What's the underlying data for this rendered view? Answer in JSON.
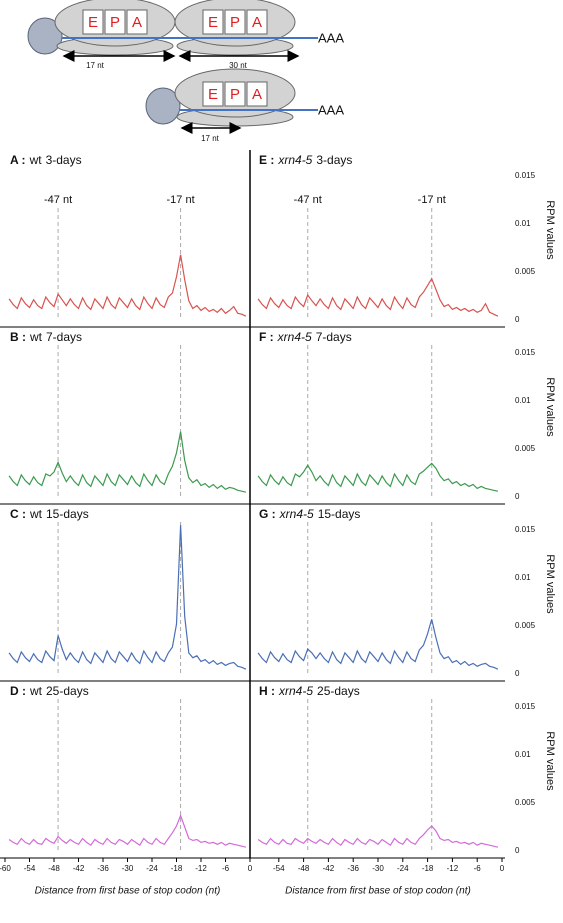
{
  "diagram": {
    "top": {
      "ribosome_1": [
        "E",
        "P",
        "A"
      ],
      "ribosome_2": [
        "E",
        "P",
        "A"
      ],
      "tail": "AAA",
      "spans": [
        "17 nt",
        "30 nt"
      ]
    },
    "bottom": {
      "ribosome": [
        "E",
        "P",
        "A"
      ],
      "tail": "AAA",
      "span": "17 nt"
    }
  },
  "chart_data": [
    {
      "type": "line",
      "panel": "A :",
      "genotype": "wt",
      "stage": "3-days",
      "color": "#d9534f",
      "xlim": [
        -60,
        0
      ],
      "ylim": [
        0,
        0.017
      ],
      "vlines": [
        -47,
        -17
      ],
      "annotations": [
        {
          "text": "-47 nt",
          "x": -47
        },
        {
          "text": "-17 nt",
          "x": -17
        }
      ],
      "x": [
        -59,
        -58,
        -57,
        -56,
        -55,
        -54,
        -53,
        -52,
        -51,
        -50,
        -49,
        -48,
        -47,
        -46,
        -45,
        -44,
        -43,
        -42,
        -41,
        -40,
        -39,
        -38,
        -37,
        -36,
        -35,
        -34,
        -33,
        -32,
        -31,
        -30,
        -29,
        -28,
        -27,
        -26,
        -25,
        -24,
        -23,
        -22,
        -21,
        -20,
        -19,
        -18,
        -17,
        -16,
        -15,
        -14,
        -13,
        -12,
        -11,
        -10,
        -9,
        -8,
        -7,
        -6,
        -5,
        -4,
        -3,
        -2,
        -1
      ],
      "values": [
        0.0022,
        0.0016,
        0.0012,
        0.0023,
        0.0017,
        0.0013,
        0.0021,
        0.0015,
        0.0012,
        0.0024,
        0.0018,
        0.0014,
        0.0027,
        0.0021,
        0.0015,
        0.0022,
        0.0016,
        0.0012,
        0.0023,
        0.0015,
        0.0011,
        0.0022,
        0.0017,
        0.0012,
        0.0024,
        0.0016,
        0.0012,
        0.0023,
        0.0018,
        0.0013,
        0.0022,
        0.0015,
        0.0011,
        0.0024,
        0.0017,
        0.0012,
        0.0023,
        0.0016,
        0.0013,
        0.0024,
        0.0028,
        0.0045,
        0.0068,
        0.0042,
        0.002,
        0.0012,
        0.0015,
        0.001,
        0.0013,
        0.0009,
        0.0011,
        0.0008,
        0.0012,
        0.0007,
        0.001,
        0.0014,
        0.0007,
        0.0006,
        0.0004
      ]
    },
    {
      "type": "line",
      "panel": "B :",
      "genotype": "wt",
      "stage": "7-days",
      "color": "#3c9a50",
      "xlim": [
        -60,
        0
      ],
      "ylim": [
        0,
        0.017
      ],
      "vlines": [
        -47,
        -17
      ],
      "x": [
        -59,
        -58,
        -57,
        -56,
        -55,
        -54,
        -53,
        -52,
        -51,
        -50,
        -49,
        -48,
        -47,
        -46,
        -45,
        -44,
        -43,
        -42,
        -41,
        -40,
        -39,
        -38,
        -37,
        -36,
        -35,
        -34,
        -33,
        -32,
        -31,
        -30,
        -29,
        -28,
        -27,
        -26,
        -25,
        -24,
        -23,
        -22,
        -21,
        -20,
        -19,
        -18,
        -17,
        -16,
        -15,
        -14,
        -13,
        -12,
        -11,
        -10,
        -9,
        -8,
        -7,
        -6,
        -5,
        -4,
        -3,
        -2,
        -1
      ],
      "values": [
        0.0022,
        0.0016,
        0.0012,
        0.0023,
        0.0017,
        0.0013,
        0.0021,
        0.0015,
        0.0012,
        0.0024,
        0.0022,
        0.0026,
        0.0036,
        0.0025,
        0.0016,
        0.0022,
        0.0016,
        0.0012,
        0.0023,
        0.0015,
        0.0011,
        0.0022,
        0.0017,
        0.0012,
        0.0024,
        0.0016,
        0.0012,
        0.0023,
        0.0018,
        0.0013,
        0.0022,
        0.0015,
        0.0011,
        0.0024,
        0.0017,
        0.0012,
        0.0023,
        0.0016,
        0.0013,
        0.0024,
        0.0032,
        0.0046,
        0.0068,
        0.0038,
        0.002,
        0.0015,
        0.0018,
        0.0012,
        0.0014,
        0.001,
        0.0013,
        0.0009,
        0.0012,
        0.0008,
        0.001,
        0.0009,
        0.0007,
        0.0006,
        0.0005
      ]
    },
    {
      "type": "line",
      "panel": "C :",
      "genotype": "wt",
      "stage": "15-days",
      "color": "#4a6fb5",
      "xlim": [
        -60,
        0
      ],
      "ylim": [
        0,
        0.017
      ],
      "vlines": [
        -47,
        -17
      ],
      "x": [
        -59,
        -58,
        -57,
        -56,
        -55,
        -54,
        -53,
        -52,
        -51,
        -50,
        -49,
        -48,
        -47,
        -46,
        -45,
        -44,
        -43,
        -42,
        -41,
        -40,
        -39,
        -38,
        -37,
        -36,
        -35,
        -34,
        -33,
        -32,
        -31,
        -30,
        -29,
        -28,
        -27,
        -26,
        -25,
        -24,
        -23,
        -22,
        -21,
        -20,
        -19,
        -18,
        -17,
        -16,
        -15,
        -14,
        -13,
        -12,
        -11,
        -10,
        -9,
        -8,
        -7,
        -6,
        -5,
        -4,
        -3,
        -2,
        -1
      ],
      "values": [
        0.0022,
        0.0016,
        0.0012,
        0.0023,
        0.0017,
        0.0013,
        0.0021,
        0.0015,
        0.0012,
        0.0024,
        0.0018,
        0.0014,
        0.004,
        0.0026,
        0.0015,
        0.0022,
        0.0016,
        0.0012,
        0.0023,
        0.0015,
        0.0011,
        0.0022,
        0.0017,
        0.0012,
        0.0024,
        0.0016,
        0.0012,
        0.0023,
        0.0018,
        0.0013,
        0.0022,
        0.0015,
        0.0011,
        0.0024,
        0.0017,
        0.0012,
        0.0023,
        0.0016,
        0.0013,
        0.0022,
        0.0028,
        0.0052,
        0.0155,
        0.006,
        0.0022,
        0.0017,
        0.0019,
        0.0013,
        0.0015,
        0.0011,
        0.0014,
        0.001,
        0.0012,
        0.0009,
        0.0011,
        0.0012,
        0.0008,
        0.0007,
        0.0005
      ]
    },
    {
      "type": "line",
      "panel": "D :",
      "genotype": "wt",
      "stage": "25-days",
      "color": "#d46ad8",
      "xlim": [
        -60,
        0
      ],
      "ylim": [
        0,
        0.017
      ],
      "vlines": [
        -47,
        -17
      ],
      "xticks": [
        -60,
        -54,
        -48,
        -42,
        -36,
        -30,
        -24,
        -18,
        -12,
        -6,
        0
      ],
      "xlabel": "Distance from first base of stop codon (nt)",
      "x": [
        -59,
        -58,
        -57,
        -56,
        -55,
        -54,
        -53,
        -52,
        -51,
        -50,
        -49,
        -48,
        -47,
        -46,
        -45,
        -44,
        -43,
        -42,
        -41,
        -40,
        -39,
        -38,
        -37,
        -36,
        -35,
        -34,
        -33,
        -32,
        -31,
        -30,
        -29,
        -28,
        -27,
        -26,
        -25,
        -24,
        -23,
        -22,
        -21,
        -20,
        -19,
        -18,
        -17,
        -16,
        -15,
        -14,
        -13,
        -12,
        -11,
        -10,
        -9,
        -8,
        -7,
        -6,
        -5,
        -4,
        -3,
        -2,
        -1
      ],
      "values": [
        0.0012,
        0.0009,
        0.0007,
        0.0013,
        0.0009,
        0.0007,
        0.0012,
        0.0008,
        0.0007,
        0.0013,
        0.001,
        0.0008,
        0.0015,
        0.0011,
        0.0008,
        0.0012,
        0.0009,
        0.0007,
        0.0013,
        0.0009,
        0.0006,
        0.0012,
        0.0009,
        0.0007,
        0.0013,
        0.0009,
        0.0007,
        0.0012,
        0.001,
        0.0007,
        0.0012,
        0.0009,
        0.0006,
        0.0013,
        0.0009,
        0.0007,
        0.0013,
        0.0009,
        0.0007,
        0.0013,
        0.0019,
        0.0026,
        0.0037,
        0.0025,
        0.0013,
        0.0011,
        0.0012,
        0.0009,
        0.001,
        0.0008,
        0.0009,
        0.0007,
        0.0009,
        0.0006,
        0.0008,
        0.0007,
        0.0006,
        0.0005,
        0.0004
      ]
    },
    {
      "type": "line",
      "panel": "E :",
      "genotype": "xrn4-5",
      "italic": true,
      "stage": "3-days",
      "color": "#d9534f",
      "xlim": [
        -60,
        0
      ],
      "ylim": [
        0,
        0.017
      ],
      "vlines": [
        -47,
        -17
      ],
      "yticks": [
        0,
        0.005,
        0.01,
        0.015
      ],
      "ylabel": "RPM values",
      "annotations": [
        {
          "text": "-47 nt",
          "x": -47
        },
        {
          "text": "-17 nt",
          "x": -17
        }
      ],
      "x": [
        -59,
        -58,
        -57,
        -56,
        -55,
        -54,
        -53,
        -52,
        -51,
        -50,
        -49,
        -48,
        -47,
        -46,
        -45,
        -44,
        -43,
        -42,
        -41,
        -40,
        -39,
        -38,
        -37,
        -36,
        -35,
        -34,
        -33,
        -32,
        -31,
        -30,
        -29,
        -28,
        -27,
        -26,
        -25,
        -24,
        -23,
        -22,
        -21,
        -20,
        -19,
        -18,
        -17,
        -16,
        -15,
        -14,
        -13,
        -12,
        -11,
        -10,
        -9,
        -8,
        -7,
        -6,
        -5,
        -4,
        -3,
        -2,
        -1
      ],
      "values": [
        0.0022,
        0.0016,
        0.0012,
        0.0023,
        0.0017,
        0.0013,
        0.0021,
        0.0015,
        0.0012,
        0.0024,
        0.0018,
        0.0014,
        0.0026,
        0.002,
        0.0015,
        0.0022,
        0.0016,
        0.0012,
        0.0023,
        0.0015,
        0.0011,
        0.0022,
        0.0017,
        0.0012,
        0.0024,
        0.0016,
        0.0012,
        0.0023,
        0.0018,
        0.0013,
        0.0022,
        0.0015,
        0.0011,
        0.0024,
        0.0017,
        0.0012,
        0.0023,
        0.0016,
        0.0013,
        0.0024,
        0.0029,
        0.0036,
        0.0043,
        0.0032,
        0.0021,
        0.0014,
        0.0016,
        0.0011,
        0.0013,
        0.001,
        0.0012,
        0.0009,
        0.0011,
        0.0008,
        0.001,
        0.0017,
        0.0008,
        0.0006,
        0.0004
      ]
    },
    {
      "type": "line",
      "panel": "F :",
      "genotype": "xrn4-5",
      "italic": true,
      "stage": "7-days",
      "color": "#3c9a50",
      "xlim": [
        -60,
        0
      ],
      "ylim": [
        0,
        0.017
      ],
      "vlines": [
        -47,
        -17
      ],
      "yticks": [
        0,
        0.005,
        0.01,
        0.015
      ],
      "ylabel": "RPM values",
      "x": [
        -59,
        -58,
        -57,
        -56,
        -55,
        -54,
        -53,
        -52,
        -51,
        -50,
        -49,
        -48,
        -47,
        -46,
        -45,
        -44,
        -43,
        -42,
        -41,
        -40,
        -39,
        -38,
        -37,
        -36,
        -35,
        -34,
        -33,
        -32,
        -31,
        -30,
        -29,
        -28,
        -27,
        -26,
        -25,
        -24,
        -23,
        -22,
        -21,
        -20,
        -19,
        -18,
        -17,
        -16,
        -15,
        -14,
        -13,
        -12,
        -11,
        -10,
        -9,
        -8,
        -7,
        -6,
        -5,
        -4,
        -3,
        -2,
        -1
      ],
      "values": [
        0.0022,
        0.0016,
        0.0012,
        0.0023,
        0.0017,
        0.0013,
        0.0021,
        0.0015,
        0.0012,
        0.0024,
        0.0021,
        0.0026,
        0.0033,
        0.0026,
        0.0017,
        0.0022,
        0.0016,
        0.0012,
        0.0023,
        0.0015,
        0.0011,
        0.0022,
        0.0017,
        0.0012,
        0.0024,
        0.0016,
        0.0012,
        0.0023,
        0.0018,
        0.0013,
        0.0022,
        0.0015,
        0.0011,
        0.0024,
        0.0017,
        0.0012,
        0.0023,
        0.0016,
        0.0013,
        0.0024,
        0.0027,
        0.0031,
        0.0035,
        0.003,
        0.0022,
        0.0017,
        0.0019,
        0.0014,
        0.0016,
        0.0012,
        0.0014,
        0.0011,
        0.0013,
        0.0009,
        0.0011,
        0.0009,
        0.0008,
        0.0007,
        0.0006
      ]
    },
    {
      "type": "line",
      "panel": "G :",
      "genotype": "xrn4-5",
      "italic": true,
      "stage": "15-days",
      "color": "#4a6fb5",
      "xlim": [
        -60,
        0
      ],
      "ylim": [
        0,
        0.017
      ],
      "vlines": [
        -47,
        -17
      ],
      "yticks": [
        0,
        0.005,
        0.01,
        0.015
      ],
      "ylabel": "RPM values",
      "x": [
        -59,
        -58,
        -57,
        -56,
        -55,
        -54,
        -53,
        -52,
        -51,
        -50,
        -49,
        -48,
        -47,
        -46,
        -45,
        -44,
        -43,
        -42,
        -41,
        -40,
        -39,
        -38,
        -37,
        -36,
        -35,
        -34,
        -33,
        -32,
        -31,
        -30,
        -29,
        -28,
        -27,
        -26,
        -25,
        -24,
        -23,
        -22,
        -21,
        -20,
        -19,
        -18,
        -17,
        -16,
        -15,
        -14,
        -13,
        -12,
        -11,
        -10,
        -9,
        -8,
        -7,
        -6,
        -5,
        -4,
        -3,
        -2,
        -1
      ],
      "values": [
        0.0022,
        0.0016,
        0.0012,
        0.0023,
        0.0017,
        0.0013,
        0.0021,
        0.0015,
        0.0012,
        0.0024,
        0.0018,
        0.0014,
        0.0026,
        0.0022,
        0.0016,
        0.0022,
        0.0016,
        0.0012,
        0.0023,
        0.0015,
        0.0011,
        0.0022,
        0.0017,
        0.0012,
        0.0024,
        0.0016,
        0.0012,
        0.0023,
        0.0018,
        0.0013,
        0.0022,
        0.0015,
        0.0011,
        0.0024,
        0.0017,
        0.0012,
        0.0023,
        0.0016,
        0.0013,
        0.0025,
        0.003,
        0.0042,
        0.0057,
        0.0038,
        0.0022,
        0.0016,
        0.0018,
        0.0012,
        0.0014,
        0.001,
        0.0013,
        0.0009,
        0.0011,
        0.0008,
        0.001,
        0.0011,
        0.0008,
        0.0007,
        0.0005
      ]
    },
    {
      "type": "line",
      "panel": "H :",
      "genotype": "xrn4-5",
      "italic": true,
      "stage": "25-days",
      "color": "#d46ad8",
      "xlim": [
        -60,
        0
      ],
      "ylim": [
        0,
        0.017
      ],
      "vlines": [
        -47,
        -17
      ],
      "yticks": [
        0,
        0.005,
        0.01,
        0.015
      ],
      "ylabel": "RPM values",
      "xticks": [
        -54,
        -48,
        -42,
        -36,
        -30,
        -24,
        -18,
        -12,
        -6,
        0
      ],
      "xlabel": "Distance from first base of stop codon (nt)",
      "x": [
        -59,
        -58,
        -57,
        -56,
        -55,
        -54,
        -53,
        -52,
        -51,
        -50,
        -49,
        -48,
        -47,
        -46,
        -45,
        -44,
        -43,
        -42,
        -41,
        -40,
        -39,
        -38,
        -37,
        -36,
        -35,
        -34,
        -33,
        -32,
        -31,
        -30,
        -29,
        -28,
        -27,
        -26,
        -25,
        -24,
        -23,
        -22,
        -21,
        -20,
        -19,
        -18,
        -17,
        -16,
        -15,
        -14,
        -13,
        -12,
        -11,
        -10,
        -9,
        -8,
        -7,
        -6,
        -5,
        -4,
        -3,
        -2,
        -1
      ],
      "values": [
        0.0012,
        0.0009,
        0.0007,
        0.0013,
        0.0009,
        0.0007,
        0.0012,
        0.0008,
        0.0007,
        0.0013,
        0.001,
        0.0008,
        0.0013,
        0.001,
        0.0008,
        0.0012,
        0.0009,
        0.0007,
        0.0013,
        0.0009,
        0.0006,
        0.0012,
        0.0009,
        0.0007,
        0.0013,
        0.0009,
        0.0007,
        0.0012,
        0.001,
        0.0007,
        0.0012,
        0.0009,
        0.0006,
        0.0013,
        0.0009,
        0.0007,
        0.0013,
        0.0009,
        0.0007,
        0.0013,
        0.0017,
        0.0022,
        0.0026,
        0.0021,
        0.0013,
        0.0011,
        0.0012,
        0.0009,
        0.001,
        0.0008,
        0.0009,
        0.0007,
        0.0009,
        0.0006,
        0.0008,
        0.0007,
        0.0006,
        0.0005,
        0.0004
      ]
    }
  ]
}
